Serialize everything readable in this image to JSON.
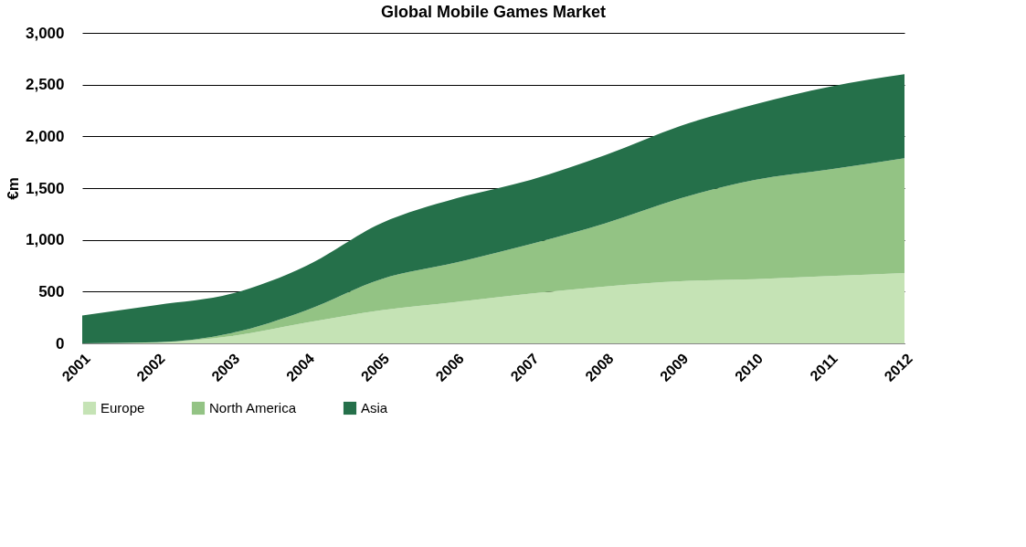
{
  "chart_data": {
    "type": "area",
    "title": "Global Mobile Games Market",
    "ylabel": "€m",
    "categories": [
      "2001",
      "2002",
      "2003",
      "2004",
      "2005",
      "2006",
      "2007",
      "2008",
      "2009",
      "2010",
      "2011",
      "2012"
    ],
    "stacked": true,
    "series": [
      {
        "name": "Europe",
        "color": "#c5e3b5",
        "values": [
          0,
          10,
          70,
          200,
          320,
          400,
          480,
          550,
          600,
          620,
          650,
          680
        ]
      },
      {
        "name": "North America",
        "color": "#93c384",
        "values": [
          0,
          0,
          30,
          120,
          300,
          380,
          480,
          610,
          800,
          960,
          1030,
          1110
        ]
      },
      {
        "name": "Asia",
        "color": "#25704a",
        "values": [
          270,
          360,
          380,
          430,
          540,
          620,
          620,
          660,
          700,
          730,
          800,
          810
        ]
      }
    ],
    "ylim": [
      0,
      3000
    ],
    "yticks": [
      0,
      {
        "value": 500,
        "label": "500"
      },
      {
        "value": 1000,
        "label": "1,000"
      },
      {
        "value": 1500,
        "label": "1,500"
      },
      {
        "value": 2000,
        "label": "2,000"
      },
      {
        "value": 2500,
        "label": "2,500"
      },
      {
        "value": 3000,
        "label": "3,000"
      }
    ],
    "grid": "y",
    "legend": "bottom"
  }
}
